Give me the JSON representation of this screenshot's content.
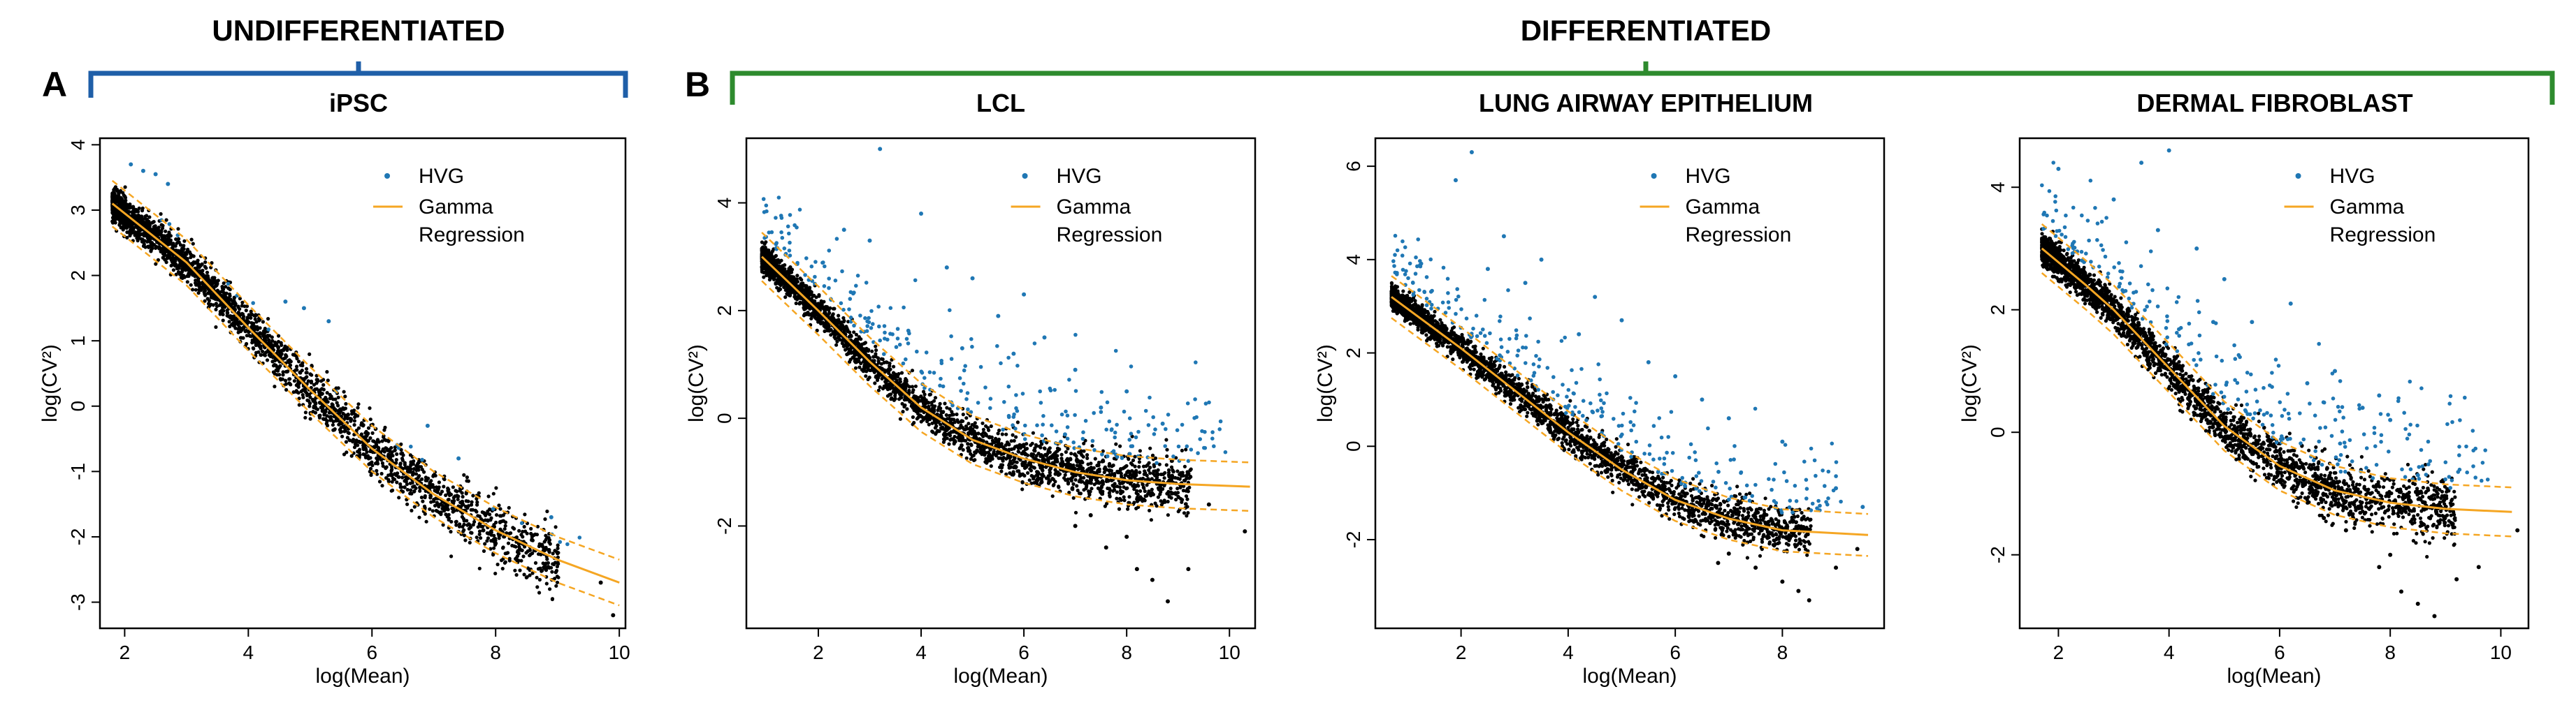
{
  "figure": {
    "groups": [
      {
        "label": "UNDIFFERENTIATED",
        "color": "#1f5fa8"
      },
      {
        "label": "DIFFERENTIATED",
        "color": "#2e8b2e"
      }
    ],
    "panel_letters": [
      "A",
      "B"
    ]
  },
  "colors": {
    "hvg": "#1f77b4",
    "regression": "#f5a623",
    "points": "#000000"
  },
  "chart_data": [
    {
      "type": "scatter",
      "title": "iPSC",
      "xlabel": "log(Mean)",
      "ylabel": "log(CV²)",
      "xlim": [
        1.6,
        10.1
      ],
      "ylim": [
        -3.4,
        4.1
      ],
      "xticks": [
        2,
        4,
        6,
        8,
        10
      ],
      "yticks": [
        -3,
        -2,
        -1,
        0,
        1,
        2,
        3,
        4
      ],
      "legend": [
        "HVG",
        "Gamma",
        "Regression"
      ],
      "regression": {
        "x": [
          1.8,
          3,
          4,
          5,
          6,
          7,
          8,
          9,
          10
        ],
        "y": [
          3.1,
          2.2,
          1.2,
          0.25,
          -0.65,
          -1.35,
          -1.9,
          -2.35,
          -2.7
        ]
      },
      "regression_band": 0.35,
      "hvg": [
        [
          2.1,
          3.7
        ],
        [
          2.3,
          3.6
        ],
        [
          2.5,
          3.55
        ],
        [
          2.7,
          3.4
        ],
        [
          4.6,
          1.6
        ],
        [
          4.9,
          1.5
        ],
        [
          5.3,
          1.3
        ],
        [
          6.9,
          -0.3
        ],
        [
          7.4,
          -0.8
        ],
        [
          8.9,
          -1.7
        ]
      ],
      "outliers": [
        [
          7.8,
          -1.9
        ],
        [
          8.4,
          -2.2
        ],
        [
          9.0,
          -2.4
        ],
        [
          9.7,
          -2.7
        ],
        [
          9.9,
          -3.2
        ],
        [
          7.5,
          -1.6
        ],
        [
          8.0,
          -2.1
        ]
      ]
    },
    {
      "type": "scatter",
      "title": "LCL",
      "xlabel": "log(Mean)",
      "ylabel": "log(CV²)",
      "xlim": [
        0.6,
        10.5
      ],
      "ylim": [
        -3.9,
        5.2
      ],
      "xticks": [
        2,
        4,
        6,
        8,
        10
      ],
      "yticks": [
        -2,
        0,
        2,
        4
      ],
      "legend": [
        "HVG",
        "Gamma",
        "Regression"
      ],
      "regression": {
        "x": [
          0.9,
          2,
          3,
          4,
          5,
          6,
          7,
          8,
          9,
          10.4
        ],
        "y": [
          3.0,
          2.0,
          1.05,
          0.2,
          -0.4,
          -0.75,
          -1.0,
          -1.15,
          -1.22,
          -1.27
        ]
      },
      "regression_band": 0.45,
      "hvg": [
        [
          3.2,
          5.0
        ],
        [
          4.0,
          3.8
        ],
        [
          6.0,
          2.3
        ],
        [
          6.4,
          1.5
        ],
        [
          5.5,
          1.9
        ],
        [
          7.0,
          0.9
        ],
        [
          8.0,
          0.5
        ],
        [
          8.7,
          -0.1
        ],
        [
          5.0,
          2.6
        ],
        [
          3.0,
          3.3
        ],
        [
          2.5,
          3.5
        ],
        [
          4.5,
          2.8
        ],
        [
          6.8,
          -0.3
        ],
        [
          7.5,
          0.2
        ],
        [
          5.8,
          1.2
        ],
        [
          4.8,
          1.3
        ]
      ],
      "outliers": [
        [
          7.6,
          -2.4
        ],
        [
          8.2,
          -2.8
        ],
        [
          8.5,
          -3.0
        ],
        [
          8.8,
          -3.4
        ],
        [
          9.2,
          -2.8
        ],
        [
          7.0,
          -2.0
        ],
        [
          10.3,
          -2.1
        ],
        [
          9.6,
          -1.6
        ],
        [
          8.0,
          -2.2
        ],
        [
          7.3,
          -1.8
        ]
      ]
    },
    {
      "type": "scatter",
      "title": "LUNG AIRWAY EPITHELIUM",
      "xlabel": "log(Mean)",
      "ylabel": "log(CV²)",
      "xlim": [
        0.4,
        9.9
      ],
      "ylim": [
        -3.9,
        6.6
      ],
      "xticks": [
        2,
        4,
        6,
        8
      ],
      "yticks": [
        -2,
        0,
        2,
        4,
        6
      ],
      "legend": [
        "HVG",
        "Gamma",
        "Regression"
      ],
      "regression": {
        "x": [
          0.7,
          2,
          3,
          4,
          5,
          6,
          7,
          8,
          9.6
        ],
        "y": [
          3.2,
          2.1,
          1.2,
          0.3,
          -0.5,
          -1.15,
          -1.55,
          -1.8,
          -1.9
        ]
      },
      "regression_band": 0.45,
      "hvg": [
        [
          2.2,
          6.3
        ],
        [
          1.9,
          5.7
        ],
        [
          2.8,
          4.5
        ],
        [
          3.5,
          4.0
        ],
        [
          4.5,
          3.2
        ],
        [
          5.0,
          2.7
        ],
        [
          6.0,
          1.5
        ],
        [
          6.5,
          1.0
        ],
        [
          7.0,
          0.6
        ],
        [
          8.0,
          0.1
        ],
        [
          9.0,
          -0.9
        ],
        [
          9.5,
          -1.3
        ],
        [
          5.5,
          1.8
        ],
        [
          3.2,
          3.5
        ],
        [
          2.5,
          3.8
        ],
        [
          4.2,
          2.4
        ]
      ],
      "outliers": [
        [
          7.5,
          -2.6
        ],
        [
          8.0,
          -2.9
        ],
        [
          8.3,
          -3.1
        ],
        [
          8.5,
          -3.3
        ],
        [
          7.0,
          -2.3
        ],
        [
          9.0,
          -2.6
        ],
        [
          9.4,
          -2.2
        ],
        [
          6.8,
          -2.5
        ]
      ]
    },
    {
      "type": "scatter",
      "title": "DERMAL FIBROBLAST",
      "xlabel": "log(Mean)",
      "ylabel": "log(CV²)",
      "xlim": [
        1.3,
        10.5
      ],
      "ylim": [
        -3.2,
        4.8
      ],
      "xticks": [
        2,
        4,
        6,
        8,
        10
      ],
      "yticks": [
        -2,
        0,
        2,
        4
      ],
      "legend": [
        "HVG",
        "Gamma",
        "Regression"
      ],
      "regression": {
        "x": [
          1.7,
          2.5,
          3,
          4,
          5,
          6,
          7,
          8,
          9,
          10.2
        ],
        "y": [
          3.0,
          2.4,
          2.0,
          1.05,
          0.1,
          -0.55,
          -0.95,
          -1.15,
          -1.25,
          -1.3
        ]
      },
      "regression_band": 0.4,
      "hvg": [
        [
          2.0,
          4.3
        ],
        [
          3.5,
          4.4
        ],
        [
          4.0,
          4.6
        ],
        [
          3.0,
          3.8
        ],
        [
          4.5,
          3.0
        ],
        [
          5.0,
          2.5
        ],
        [
          5.5,
          1.8
        ],
        [
          6.2,
          2.1
        ],
        [
          7.0,
          1.0
        ],
        [
          7.5,
          0.4
        ],
        [
          8.0,
          0.2
        ],
        [
          8.5,
          -0.7
        ],
        [
          4.8,
          1.8
        ],
        [
          6.5,
          0.8
        ],
        [
          3.8,
          3.3
        ],
        [
          7.8,
          0.6
        ]
      ],
      "outliers": [
        [
          7.8,
          -2.2
        ],
        [
          8.2,
          -2.6
        ],
        [
          8.5,
          -2.8
        ],
        [
          8.8,
          -3.0
        ],
        [
          9.2,
          -2.4
        ],
        [
          7.2,
          -1.6
        ],
        [
          9.6,
          -2.2
        ],
        [
          10.3,
          -1.6
        ],
        [
          6.8,
          -1.4
        ],
        [
          8.0,
          -2.0
        ]
      ]
    }
  ]
}
